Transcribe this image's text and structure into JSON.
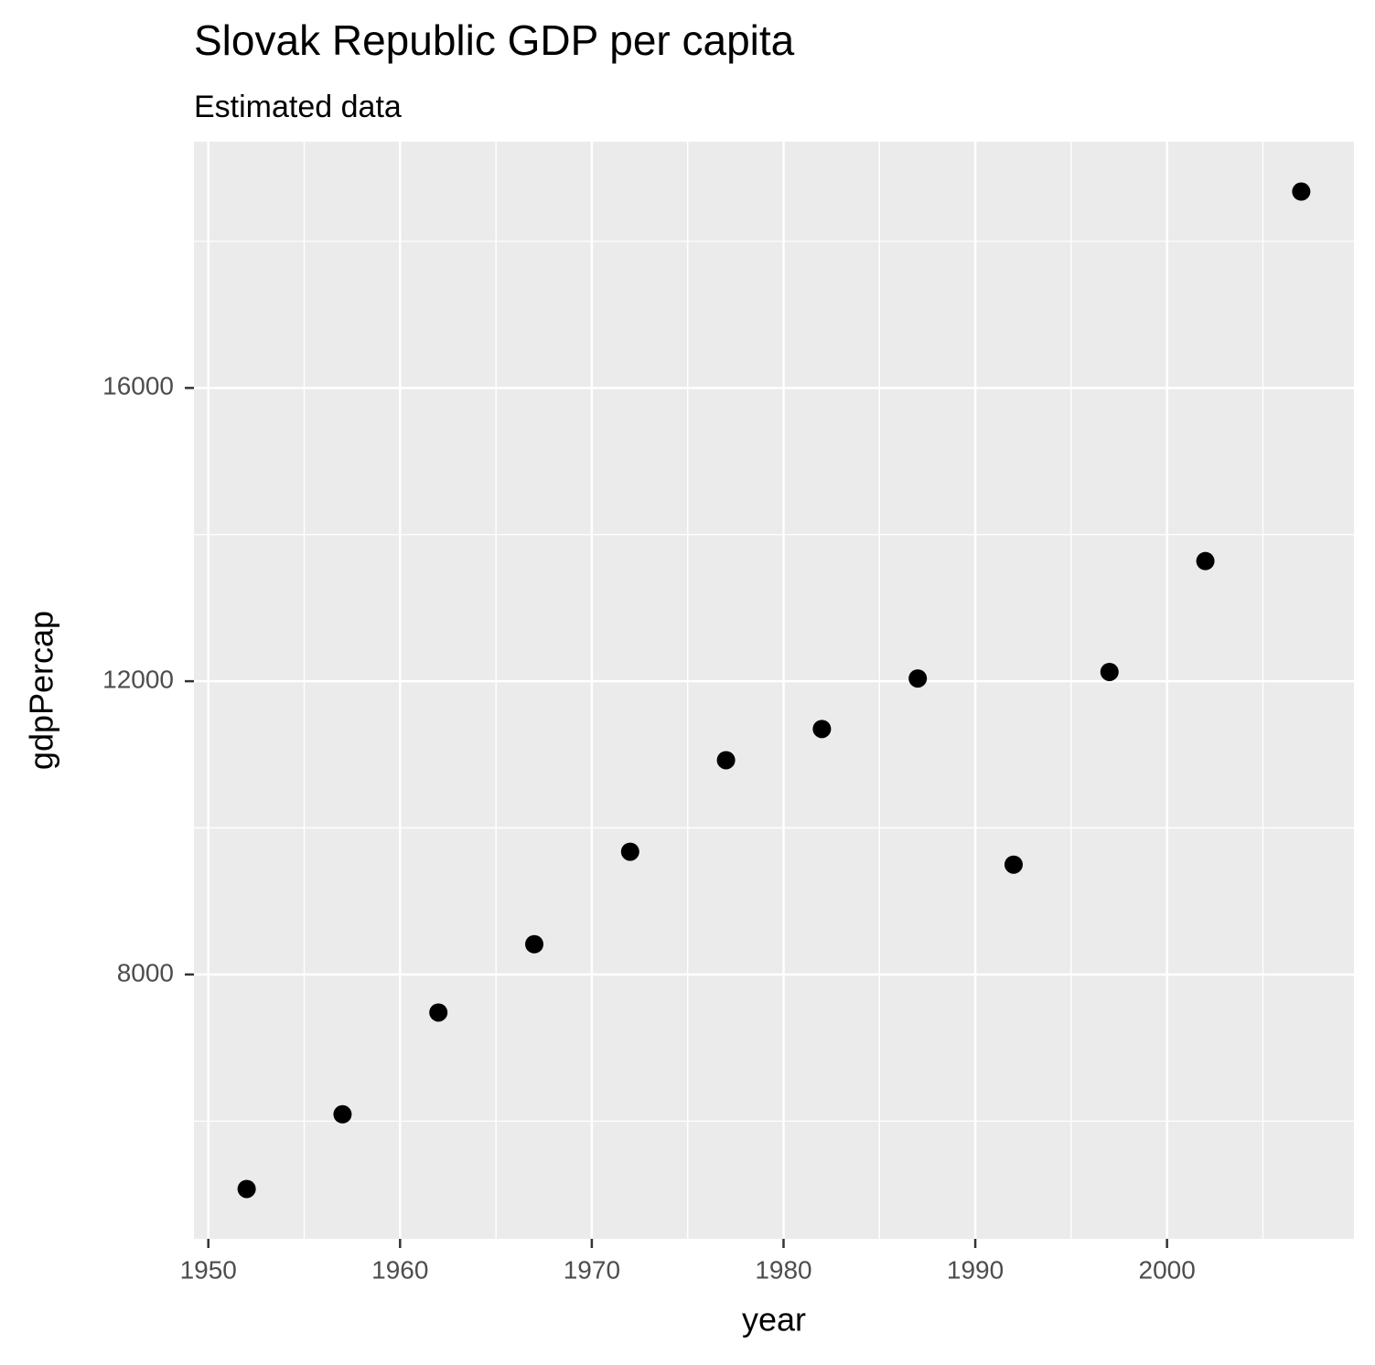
{
  "chart_data": {
    "type": "scatter",
    "title": "Slovak Republic GDP per capita",
    "subtitle": "Estimated data",
    "x_label": "year",
    "y_label": "gdpPercap",
    "x": [
      1952,
      1957,
      1962,
      1967,
      1972,
      1977,
      1982,
      1987,
      1992,
      1997,
      2002,
      2007
    ],
    "values": [
      5074.66,
      6093.26,
      7481.11,
      8412.9,
      9674.17,
      10922.66,
      11348.55,
      12037.27,
      9498.47,
      12126.23,
      13638.78,
      18678.31
    ],
    "color": "#000000",
    "xlim": [
      1949.25,
      2009.75
    ],
    "ylim": [
      4394.5,
      19358.5
    ],
    "xticks": [
      1950,
      1960,
      1970,
      1980,
      1990,
      2000
    ],
    "yticks": [
      8000,
      12000,
      16000
    ],
    "grid": true
  }
}
